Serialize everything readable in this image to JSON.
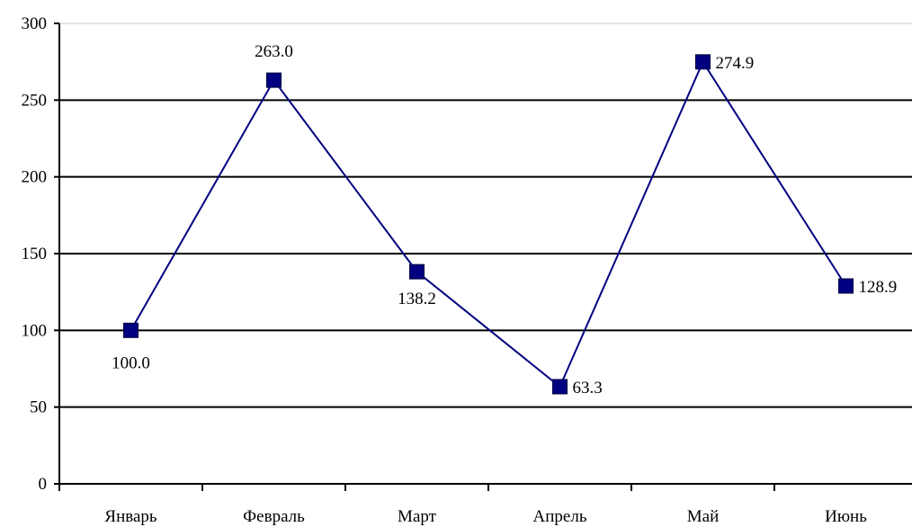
{
  "chart_data": {
    "type": "line",
    "categories": [
      "Январь",
      "Февраль",
      "Март",
      "Апрель",
      "Май",
      "Июнь"
    ],
    "series": [
      {
        "values": [
          100.0,
          263.0,
          138.2,
          63.3,
          274.9,
          128.9
        ]
      }
    ],
    "data_labels": [
      "100.0",
      "263.0",
      "138.2",
      "63.3",
      "274.9",
      "128.9"
    ],
    "y_ticks": [
      "0",
      "50",
      "100",
      "150",
      "200",
      "250",
      "300"
    ],
    "ylim": [
      0,
      300
    ],
    "title": "",
    "xlabel": "",
    "ylabel": "",
    "grid": true,
    "legend": false,
    "colors": {
      "line": "#000080",
      "marker": "#000080",
      "grid": "#000000",
      "axis": "#000000"
    }
  }
}
